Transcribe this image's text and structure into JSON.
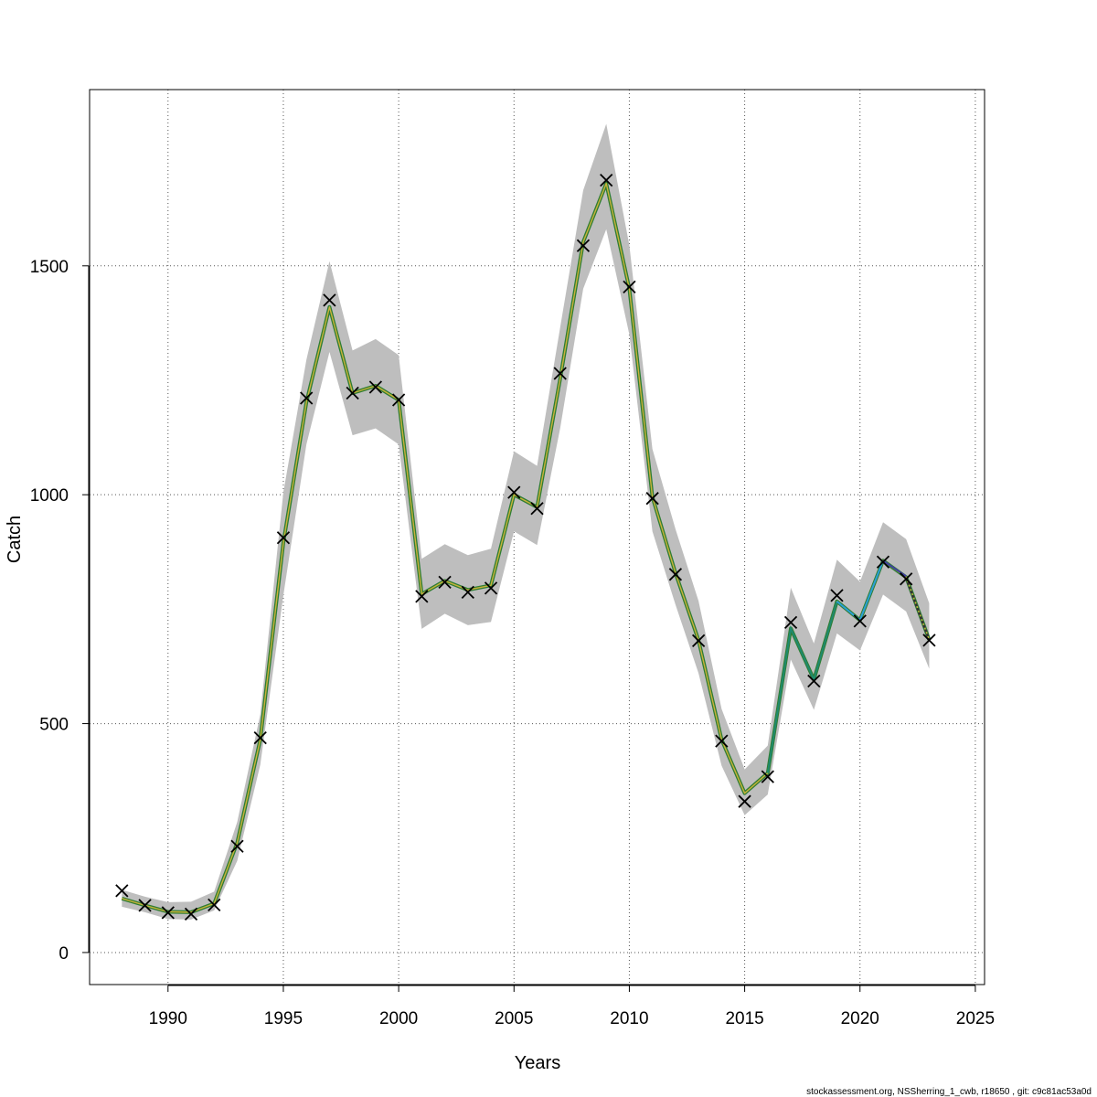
{
  "chart_data": {
    "type": "line",
    "xlabel": "Years",
    "ylabel": "Catch",
    "xlim": [
      1986.6,
      2025.4
    ],
    "ylim": [
      -70,
      1885
    ],
    "grid": true,
    "x_ticks": [
      1990,
      1995,
      2000,
      2005,
      2010,
      2015,
      2020,
      2025
    ],
    "x_tick_labels": [
      "1990",
      "1995",
      "2000",
      "2005",
      "2010",
      "2015",
      "2020",
      "2025"
    ],
    "y_ticks": [
      0,
      500,
      1000,
      1500
    ],
    "y_tick_labels": [
      "0",
      "500",
      "1000",
      "1500"
    ],
    "x": [
      1988,
      1989,
      1990,
      1991,
      1992,
      1993,
      1994,
      1995,
      1996,
      1997,
      1998,
      1999,
      2000,
      2001,
      2002,
      2003,
      2004,
      2005,
      2006,
      2007,
      2008,
      2009,
      2010,
      2011,
      2012,
      2013,
      2014,
      2015,
      2016,
      2017,
      2018,
      2019,
      2020,
      2021,
      2022,
      2023
    ],
    "observed": [
      135,
      103,
      87,
      84,
      104,
      232,
      469,
      906,
      1211,
      1425,
      1222,
      1235,
      1207,
      778,
      809,
      787,
      796,
      1005,
      970,
      1265,
      1544,
      1687,
      1454,
      992,
      826,
      681,
      462,
      330,
      384,
      721,
      593,
      780,
      724,
      853,
      816,
      682
    ],
    "fitted": [
      118,
      103,
      89,
      88,
      107,
      240,
      465,
      895,
      1202,
      1410,
      1222,
      1238,
      1207,
      783,
      812,
      792,
      802,
      1000,
      973,
      1253,
      1552,
      1680,
      1450,
      995,
      829,
      682,
      465,
      348,
      392,
      708,
      596,
      767,
      726,
      856,
      820,
      683
    ],
    "ci_lower": [
      100,
      88,
      73,
      72,
      92,
      200,
      410,
      780,
      1110,
      1312,
      1130,
      1145,
      1110,
      707,
      740,
      715,
      722,
      920,
      890,
      1145,
      1450,
      1580,
      1350,
      920,
      760,
      610,
      408,
      300,
      345,
      640,
      530,
      697,
      660,
      782,
      745,
      620
    ],
    "ci_upper": [
      137,
      122,
      110,
      111,
      133,
      285,
      520,
      1005,
      1295,
      1510,
      1315,
      1340,
      1305,
      860,
      892,
      868,
      882,
      1095,
      1063,
      1365,
      1665,
      1810,
      1545,
      1100,
      925,
      768,
      532,
      400,
      452,
      797,
      675,
      858,
      810,
      940,
      903,
      763
    ],
    "retro_segments": [
      {
        "color": "#1e8a6e",
        "x": [
          2016,
          2017,
          2018,
          2019
        ],
        "y": [
          392,
          708,
          596,
          767
        ]
      },
      {
        "color": "#2a9fd6",
        "x": [
          2019,
          2020,
          2021
        ],
        "y": [
          767,
          726,
          856
        ]
      },
      {
        "color": "#4040a0",
        "x": [
          2021,
          2022
        ],
        "y": [
          856,
          822
        ]
      },
      {
        "color": "#333333",
        "x": [
          2022,
          2023
        ],
        "y": [
          818,
          683
        ]
      }
    ],
    "colors": {
      "band": "#bebebe",
      "line_main": "#2e7d32",
      "line_highlight": "#c9b23a",
      "marker": "#000000"
    }
  },
  "footer": "stockassessment.org, NSSherring_1_cwb, r18650 , git: c9c81ac53a0d"
}
